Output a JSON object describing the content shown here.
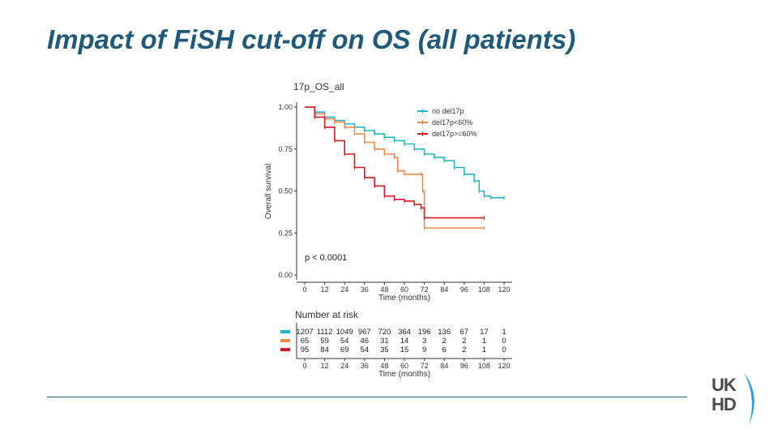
{
  "slide": {
    "title": "Impact of FiSH cut-off on OS (all patients)"
  },
  "logo": {
    "line1": "UK",
    "line2": "HD"
  },
  "chart_data": {
    "type": "line",
    "title": "17p_OS_all",
    "xlabel": "Time (months)",
    "ylabel": "Overall survival",
    "xlim": [
      0,
      120
    ],
    "ylim": [
      0,
      1
    ],
    "xticks": [
      "0",
      "12",
      "24",
      "36",
      "48",
      "60",
      "72",
      "84",
      "96",
      "108",
      "120"
    ],
    "yticks": [
      "0.00",
      "0.25",
      "0.50",
      "0.75",
      "1.00"
    ],
    "legend_position": "top-right",
    "grid": false,
    "annotation": "p < 0.0001",
    "series": [
      {
        "name": "no del17p",
        "color": "#20b7c6",
        "points": [
          [
            0,
            1.0
          ],
          [
            6,
            0.97
          ],
          [
            12,
            0.94
          ],
          [
            18,
            0.92
          ],
          [
            24,
            0.9
          ],
          [
            30,
            0.88
          ],
          [
            36,
            0.86
          ],
          [
            42,
            0.84
          ],
          [
            48,
            0.82
          ],
          [
            54,
            0.8
          ],
          [
            60,
            0.78
          ],
          [
            66,
            0.75
          ],
          [
            72,
            0.72
          ],
          [
            78,
            0.7
          ],
          [
            84,
            0.68
          ],
          [
            90,
            0.64
          ],
          [
            96,
            0.6
          ],
          [
            102,
            0.56
          ],
          [
            105,
            0.5
          ],
          [
            108,
            0.47
          ],
          [
            112,
            0.46
          ],
          [
            120,
            0.46
          ]
        ]
      },
      {
        "name": "del17p<60%",
        "color": "#ef8b4a",
        "points": [
          [
            0,
            1.0
          ],
          [
            6,
            0.96
          ],
          [
            12,
            0.93
          ],
          [
            18,
            0.91
          ],
          [
            24,
            0.88
          ],
          [
            30,
            0.84
          ],
          [
            36,
            0.79
          ],
          [
            42,
            0.75
          ],
          [
            48,
            0.72
          ],
          [
            54,
            0.7
          ],
          [
            56,
            0.62
          ],
          [
            60,
            0.6
          ],
          [
            70,
            0.6
          ],
          [
            71,
            0.5
          ],
          [
            72,
            0.28
          ],
          [
            108,
            0.28
          ]
        ]
      },
      {
        "name": "del17p>=60%",
        "color": "#d21b24",
        "points": [
          [
            0,
            1.0
          ],
          [
            6,
            0.94
          ],
          [
            12,
            0.88
          ],
          [
            18,
            0.8
          ],
          [
            24,
            0.72
          ],
          [
            30,
            0.64
          ],
          [
            36,
            0.58
          ],
          [
            42,
            0.53
          ],
          [
            48,
            0.47
          ],
          [
            54,
            0.45
          ],
          [
            60,
            0.44
          ],
          [
            66,
            0.42
          ],
          [
            70,
            0.4
          ],
          [
            72,
            0.34
          ],
          [
            108,
            0.34
          ]
        ]
      }
    ],
    "risk_table": {
      "title": "Number at risk",
      "xlabel": "Time (months)",
      "time_points": [
        "0",
        "12",
        "24",
        "36",
        "48",
        "60",
        "72",
        "84",
        "96",
        "108",
        "120"
      ],
      "rows": [
        {
          "color": "#20b7c6",
          "values": [
            "1207",
            "1112",
            "1049",
            "967",
            "720",
            "364",
            "196",
            "136",
            "67",
            "17",
            "1"
          ]
        },
        {
          "color": "#ef8b4a",
          "values": [
            "65",
            "59",
            "54",
            "46",
            "31",
            "14",
            "3",
            "2",
            "2",
            "1",
            "0"
          ]
        },
        {
          "color": "#d21b24",
          "values": [
            "95",
            "84",
            "69",
            "54",
            "35",
            "15",
            "9",
            "6",
            "2",
            "1",
            "0"
          ]
        }
      ]
    }
  }
}
